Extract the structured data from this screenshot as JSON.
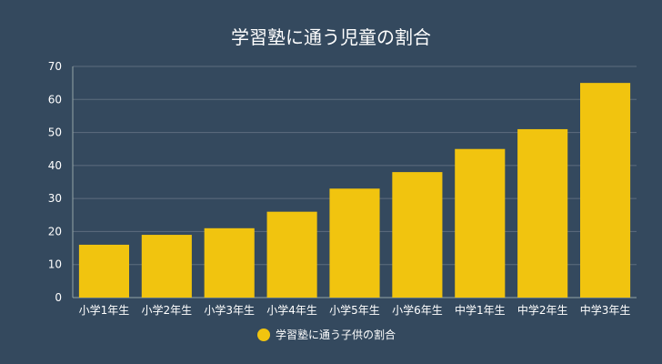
{
  "colors": {
    "background": "#34495e",
    "bar": "#f1c40f",
    "grid": "#5d6d7e",
    "axis": "#95a5a6",
    "text": "#ffffff"
  },
  "chart_data": {
    "type": "bar",
    "title": "学習塾に通う児童の割合",
    "xlabel": "",
    "ylabel": "",
    "categories": [
      "小学1年生",
      "小学2年生",
      "小学3年生",
      "小学4年生",
      "小学5年生",
      "小学6年生",
      "中学1年生",
      "中学2年生",
      "中学3年生"
    ],
    "series": [
      {
        "name": "学習塾に通う子供の割合",
        "values": [
          16,
          19,
          21,
          26,
          33,
          38,
          45,
          51,
          65
        ]
      }
    ],
    "ylim": [
      0,
      70
    ],
    "yticks": [
      0,
      10,
      20,
      30,
      40,
      50,
      60,
      70
    ],
    "grid": true,
    "legend": "bottom"
  }
}
